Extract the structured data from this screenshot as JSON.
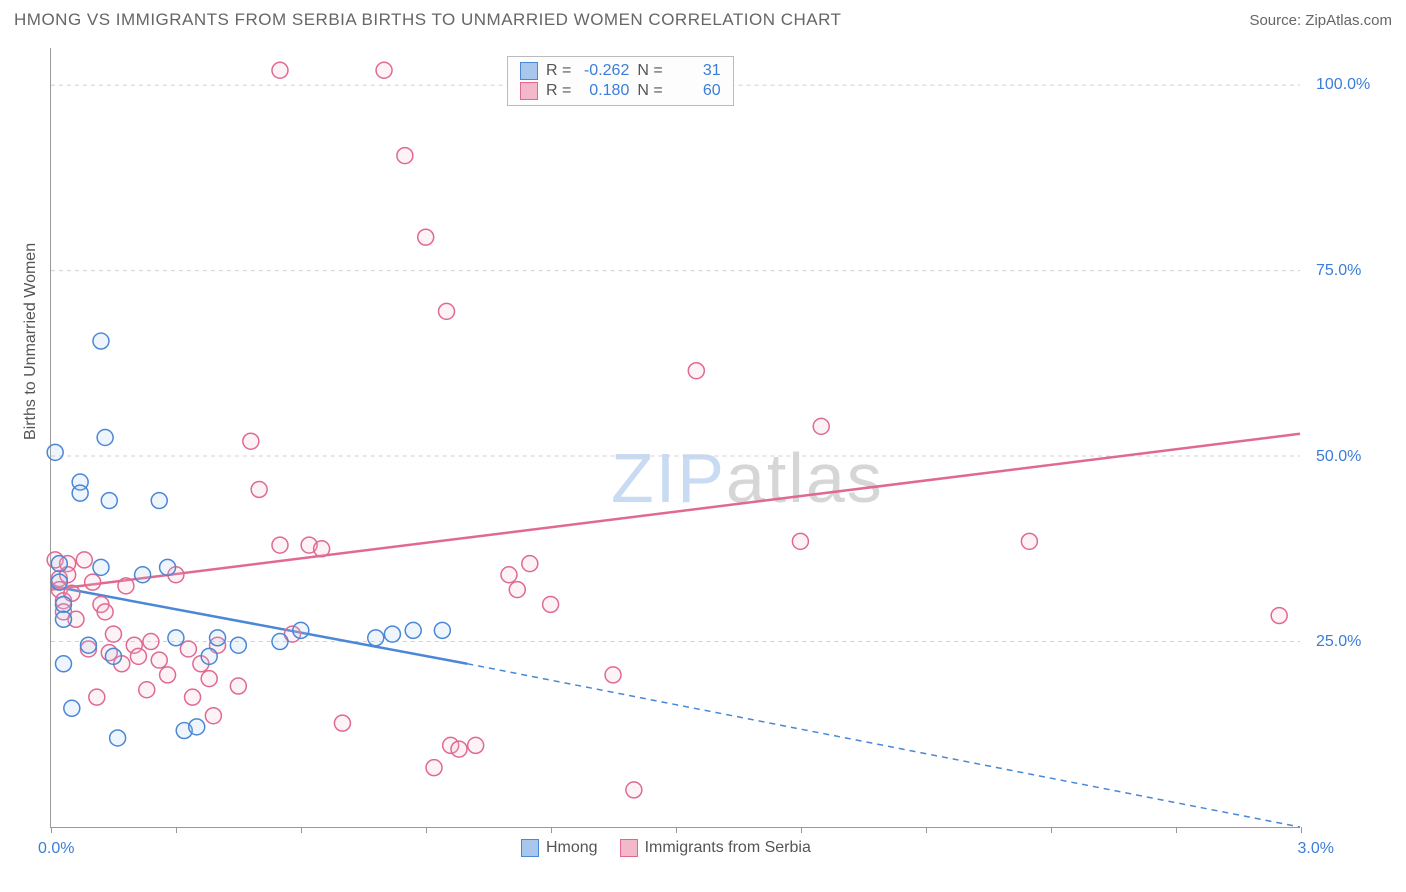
{
  "chart": {
    "type": "scatter",
    "title": "HMONG VS IMMIGRANTS FROM SERBIA BIRTHS TO UNMARRIED WOMEN CORRELATION CHART",
    "source": "Source: ZipAtlas.com",
    "watermark_zip": "ZIP",
    "watermark_atlas": "atlas",
    "y_axis_title": "Births to Unmarried Women",
    "background_color": "#ffffff",
    "grid_color": "#d0d0d0",
    "grid_style": "dashed",
    "axis_color": "#999999",
    "tick_label_color": "#3b7dd8",
    "title_fontsize": 17,
    "label_fontsize": 16,
    "xlim": [
      0.0,
      3.0
    ],
    "ylim": [
      0.0,
      105.0
    ],
    "y_ticks": [
      25.0,
      50.0,
      75.0,
      100.0
    ],
    "y_tick_labels": [
      "25.0%",
      "50.0%",
      "75.0%",
      "100.0%"
    ],
    "x_ticks": [
      0.0,
      0.3,
      0.6,
      0.9,
      1.2,
      1.5,
      1.8,
      2.1,
      2.4,
      2.7,
      3.0
    ],
    "x_endpoint_labels": [
      "0.0%",
      "3.0%"
    ],
    "marker_radius": 8,
    "marker_stroke_width": 1.5,
    "marker_fill_opacity": 0.18,
    "line_width": 2.5,
    "dash_pattern": "6,5",
    "series": [
      {
        "name": "Hmong",
        "color": "#4a87d6",
        "fill": "#a9c6ec",
        "R": "-0.262",
        "N": "31",
        "trend": {
          "x1": 0.0,
          "y1": 32.5,
          "x2": 1.0,
          "y2": 22.0,
          "dash_extend_to_x": 3.0,
          "dash_extend_to_y": 0.0
        },
        "points": [
          [
            0.01,
            50.5
          ],
          [
            0.02,
            35.5
          ],
          [
            0.02,
            33.0
          ],
          [
            0.03,
            30.0
          ],
          [
            0.03,
            28.0
          ],
          [
            0.03,
            22.0
          ],
          [
            0.05,
            16.0
          ],
          [
            0.07,
            46.5
          ],
          [
            0.07,
            45.0
          ],
          [
            0.09,
            24.5
          ],
          [
            0.12,
            65.5
          ],
          [
            0.12,
            35.0
          ],
          [
            0.13,
            52.5
          ],
          [
            0.14,
            44.0
          ],
          [
            0.15,
            23.0
          ],
          [
            0.16,
            12.0
          ],
          [
            0.22,
            34.0
          ],
          [
            0.26,
            44.0
          ],
          [
            0.28,
            35.0
          ],
          [
            0.3,
            25.5
          ],
          [
            0.32,
            13.0
          ],
          [
            0.35,
            13.5
          ],
          [
            0.38,
            23.0
          ],
          [
            0.4,
            25.5
          ],
          [
            0.45,
            24.5
          ],
          [
            0.55,
            25.0
          ],
          [
            0.6,
            26.5
          ],
          [
            0.78,
            25.5
          ],
          [
            0.82,
            26.0
          ],
          [
            0.87,
            26.5
          ],
          [
            0.94,
            26.5
          ]
        ]
      },
      {
        "name": "Immigrants from Serbia",
        "color": "#e06991",
        "fill": "#f3b9cb",
        "R": "0.180",
        "N": "60",
        "trend": {
          "x1": 0.0,
          "y1": 32.0,
          "x2": 3.0,
          "y2": 53.0
        },
        "points": [
          [
            0.01,
            36.0
          ],
          [
            0.02,
            33.5
          ],
          [
            0.02,
            32.0
          ],
          [
            0.03,
            30.5
          ],
          [
            0.03,
            29.0
          ],
          [
            0.04,
            35.5
          ],
          [
            0.04,
            34.0
          ],
          [
            0.05,
            31.5
          ],
          [
            0.06,
            28.0
          ],
          [
            0.08,
            36.0
          ],
          [
            0.09,
            24.0
          ],
          [
            0.1,
            33.0
          ],
          [
            0.11,
            17.5
          ],
          [
            0.12,
            30.0
          ],
          [
            0.13,
            29.0
          ],
          [
            0.14,
            23.5
          ],
          [
            0.15,
            26.0
          ],
          [
            0.17,
            22.0
          ],
          [
            0.18,
            32.5
          ],
          [
            0.2,
            24.5
          ],
          [
            0.21,
            23.0
          ],
          [
            0.23,
            18.5
          ],
          [
            0.24,
            25.0
          ],
          [
            0.26,
            22.5
          ],
          [
            0.28,
            20.5
          ],
          [
            0.3,
            34.0
          ],
          [
            0.33,
            24.0
          ],
          [
            0.34,
            17.5
          ],
          [
            0.36,
            22.0
          ],
          [
            0.38,
            20.0
          ],
          [
            0.39,
            15.0
          ],
          [
            0.4,
            24.5
          ],
          [
            0.45,
            19.0
          ],
          [
            0.48,
            52.0
          ],
          [
            0.5,
            45.5
          ],
          [
            0.55,
            38.0
          ],
          [
            0.55,
            102.0
          ],
          [
            0.58,
            26.0
          ],
          [
            0.62,
            38.0
          ],
          [
            0.65,
            37.5
          ],
          [
            0.7,
            14.0
          ],
          [
            0.8,
            102.0
          ],
          [
            0.85,
            90.5
          ],
          [
            0.9,
            79.5
          ],
          [
            0.92,
            8.0
          ],
          [
            0.95,
            69.5
          ],
          [
            0.96,
            11.0
          ],
          [
            0.98,
            10.5
          ],
          [
            1.02,
            11.0
          ],
          [
            1.1,
            34.0
          ],
          [
            1.12,
            32.0
          ],
          [
            1.15,
            35.5
          ],
          [
            1.2,
            30.0
          ],
          [
            1.35,
            20.5
          ],
          [
            1.4,
            5.0
          ],
          [
            1.55,
            61.5
          ],
          [
            1.8,
            38.5
          ],
          [
            1.85,
            54.0
          ],
          [
            2.35,
            38.5
          ],
          [
            2.95,
            28.5
          ]
        ]
      }
    ],
    "legend_bottom": [
      {
        "label": "Hmong",
        "swatch_fill": "#a9c6ec",
        "swatch_border": "#4a87d6"
      },
      {
        "label": "Immigrants from Serbia",
        "swatch_fill": "#f3b9cb",
        "swatch_border": "#e06991"
      }
    ],
    "legend_stats_labels": {
      "R": "R =",
      "N": "N ="
    }
  }
}
